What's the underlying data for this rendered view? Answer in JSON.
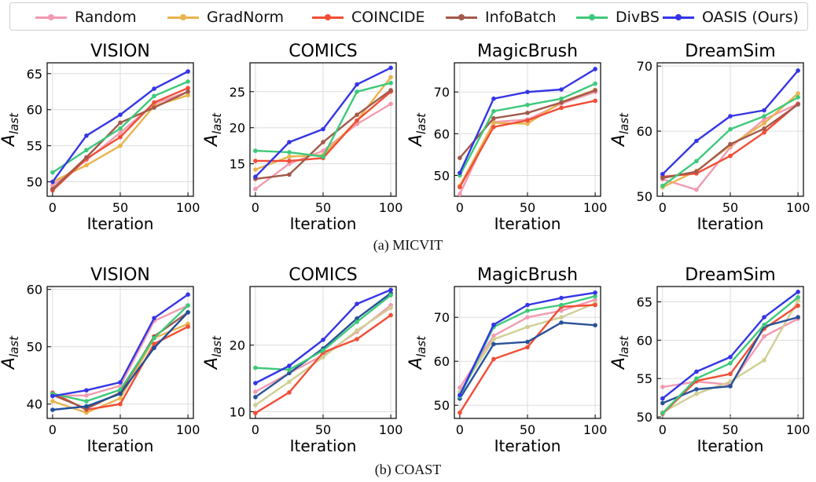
{
  "legend": [
    {
      "name": "Random",
      "color": "#f29bb0"
    },
    {
      "name": "GradNorm",
      "color": "#e8b44d"
    },
    {
      "name": "COINCIDE",
      "color": "#f04e36"
    },
    {
      "name": "InfoBatch",
      "color": "#a2594b"
    },
    {
      "name": "DivBS",
      "color": "#3ec97a"
    },
    {
      "name": "OASIS (Ours)",
      "color": "#3535e6"
    }
  ],
  "captions": [
    "(a) MICVIT",
    "(b) COAST"
  ],
  "chart_data": [
    {
      "type": "line",
      "group": "(a) MICVIT",
      "title": "VISION",
      "xlabel": "Iteration",
      "ylabel": "A_last",
      "x": [
        0,
        25,
        50,
        75,
        100
      ],
      "xlim": [
        -4,
        104
      ],
      "ylim": [
        48,
        66.5
      ],
      "yticks": [
        50,
        55,
        60,
        65
      ],
      "xticks": [
        0,
        50,
        100
      ],
      "grid": true,
      "series": [
        {
          "name": "Random",
          "values": [
            49.5,
            53.0,
            56.8,
            60.8,
            62.5
          ]
        },
        {
          "name": "GradNorm",
          "values": [
            50.0,
            52.3,
            55.0,
            60.5,
            62.0
          ]
        },
        {
          "name": "COINCIDE",
          "values": [
            48.8,
            53.2,
            56.2,
            61.0,
            63.0
          ]
        },
        {
          "name": "InfoBatch",
          "values": [
            49.0,
            53.4,
            58.2,
            60.3,
            62.5
          ]
        },
        {
          "name": "DivBS",
          "values": [
            51.3,
            54.4,
            57.4,
            61.9,
            63.9
          ]
        },
        {
          "name": "OASIS (Ours)",
          "values": [
            50.0,
            56.4,
            59.3,
            62.9,
            65.3
          ]
        }
      ]
    },
    {
      "type": "line",
      "group": "(a) MICVIT",
      "title": "COMICS",
      "xlabel": "Iteration",
      "ylabel": "A_last",
      "x": [
        0,
        25,
        50,
        75,
        100
      ],
      "xlim": [
        -4,
        104
      ],
      "ylim": [
        10.5,
        29
      ],
      "yticks": [
        15,
        20,
        25
      ],
      "xticks": [
        0,
        50,
        100
      ],
      "grid": true,
      "series": [
        {
          "name": "Random",
          "values": [
            11.5,
            15.0,
            16.8,
            20.5,
            23.3
          ]
        },
        {
          "name": "GradNorm",
          "values": [
            14.2,
            16.0,
            16.2,
            21.0,
            27.0
          ]
        },
        {
          "name": "COINCIDE",
          "values": [
            15.4,
            15.4,
            15.8,
            21.0,
            25.0
          ]
        },
        {
          "name": "InfoBatch",
          "values": [
            12.9,
            13.5,
            18.0,
            21.8,
            25.2
          ]
        },
        {
          "name": "DivBS",
          "values": [
            16.8,
            16.6,
            16.0,
            25.0,
            26.2
          ]
        },
        {
          "name": "OASIS (Ours)",
          "values": [
            13.2,
            18.0,
            19.8,
            26.0,
            28.3
          ]
        }
      ]
    },
    {
      "type": "line",
      "group": "(a) MICVIT",
      "title": "MagicBrush",
      "xlabel": "Iteration",
      "ylabel": "A_last",
      "x": [
        0,
        25,
        50,
        75,
        100
      ],
      "xlim": [
        -4,
        104
      ],
      "ylim": [
        45,
        77
      ],
      "yticks": [
        50,
        60,
        70
      ],
      "xticks": [
        0,
        50,
        100
      ],
      "grid": true,
      "series": [
        {
          "name": "Random",
          "values": [
            45.5,
            62.8,
            63.4,
            67.2,
            70.0
          ]
        },
        {
          "name": "GradNorm",
          "values": [
            47.5,
            62.6,
            62.4,
            67.6,
            70.5
          ]
        },
        {
          "name": "COINCIDE",
          "values": [
            47.2,
            61.6,
            63.2,
            66.2,
            67.9
          ]
        },
        {
          "name": "InfoBatch",
          "values": [
            54.2,
            63.7,
            65.0,
            67.5,
            70.4
          ]
        },
        {
          "name": "DivBS",
          "values": [
            50.0,
            65.4,
            66.9,
            68.4,
            72.0
          ]
        },
        {
          "name": "OASIS (Ours)",
          "values": [
            50.6,
            68.4,
            70.0,
            70.6,
            75.5
          ]
        }
      ]
    },
    {
      "type": "line",
      "group": "(a) MICVIT",
      "title": "DreamSim",
      "xlabel": "Iteration",
      "ylabel": "A_last",
      "x": [
        0,
        25,
        50,
        75,
        100
      ],
      "xlim": [
        -4,
        104
      ],
      "ylim": [
        50,
        70.5
      ],
      "yticks": [
        50,
        60,
        70
      ],
      "xticks": [
        0,
        50,
        100
      ],
      "grid": true,
      "series": [
        {
          "name": "Random",
          "values": [
            52.6,
            51.0,
            57.5,
            61.8,
            64.2
          ]
        },
        {
          "name": "GradNorm",
          "values": [
            51.4,
            53.9,
            57.8,
            61.2,
            65.8
          ]
        },
        {
          "name": "COINCIDE",
          "values": [
            53.0,
            53.5,
            56.2,
            59.8,
            64.2
          ]
        },
        {
          "name": "InfoBatch",
          "values": [
            52.8,
            53.8,
            58.0,
            60.4,
            64.1
          ]
        },
        {
          "name": "DivBS",
          "values": [
            51.6,
            55.4,
            60.3,
            62.3,
            65.2
          ]
        },
        {
          "name": "OASIS (Ours)",
          "values": [
            53.4,
            58.5,
            62.3,
            63.2,
            69.3
          ]
        }
      ]
    },
    {
      "type": "line",
      "group": "(b) COAST",
      "title": "VISION",
      "xlabel": "Iteration",
      "ylabel": "A_last",
      "x": [
        0,
        25,
        50,
        75,
        100
      ],
      "xlim": [
        -4,
        104
      ],
      "ylim": [
        37.5,
        60.5
      ],
      "yticks": [
        40,
        50,
        60
      ],
      "xticks": [
        0,
        50,
        100
      ],
      "grid": true,
      "series": [
        {
          "name": "Random",
          "values": [
            41.5,
            41.5,
            43.2,
            54.5,
            57.2
          ]
        },
        {
          "name": "GradNorm",
          "values": [
            40.5,
            38.5,
            41.0,
            51.5,
            54.0
          ]
        },
        {
          "name": "COINCIDE",
          "values": [
            42.0,
            39.0,
            40.0,
            50.5,
            53.5
          ]
        },
        {
          "name": "InfoBatch",
          "values": [
            41.6,
            39.2,
            42.0,
            51.8,
            56.0
          ]
        },
        {
          "name": "DivBS",
          "values": [
            41.8,
            40.5,
            42.5,
            51.5,
            57.2
          ]
        },
        {
          "name": "OASIS (Ours)",
          "values": [
            41.4,
            42.4,
            43.8,
            55.0,
            59.1
          ]
        },
        {
          "name": "",
          "color": "#1f4e9a",
          "values": [
            39.0,
            39.6,
            41.8,
            49.8,
            56.0
          ]
        }
      ]
    },
    {
      "type": "line",
      "group": "(b) COAST",
      "title": "COMICS",
      "xlabel": "Iteration",
      "ylabel": "A_last",
      "x": [
        0,
        25,
        50,
        75,
        100
      ],
      "xlim": [
        -4,
        104
      ],
      "ylim": [
        9,
        28.8
      ],
      "yticks": [
        10,
        20
      ],
      "xticks": [
        0,
        50,
        100
      ],
      "grid": true,
      "series": [
        {
          "name": "Random",
          "values": [
            13.0,
            15.8,
            18.5,
            22.0,
            26.0
          ]
        },
        {
          "name": "",
          "color": "#cfcf93",
          "values": [
            11.0,
            14.5,
            18.2,
            22.2,
            25.6
          ]
        },
        {
          "name": "COINCIDE",
          "values": [
            9.8,
            12.9,
            18.9,
            20.9,
            24.5
          ]
        },
        {
          "name": "",
          "color": "#2a5298",
          "values": [
            12.2,
            15.8,
            19.5,
            24.0,
            27.8
          ]
        },
        {
          "name": "DivBS",
          "values": [
            16.6,
            16.3,
            19.2,
            23.5,
            27.5
          ]
        },
        {
          "name": "OASIS (Ours)",
          "values": [
            14.3,
            16.9,
            20.8,
            26.2,
            28.3
          ]
        }
      ]
    },
    {
      "type": "line",
      "group": "(b) COAST",
      "title": "MagicBrush",
      "xlabel": "Iteration",
      "ylabel": "A_last",
      "x": [
        0,
        25,
        50,
        75,
        100
      ],
      "xlim": [
        -4,
        104
      ],
      "ylim": [
        47,
        77
      ],
      "yticks": [
        50,
        60,
        70
      ],
      "xticks": [
        0,
        50,
        100
      ],
      "grid": true,
      "series": [
        {
          "name": "Random",
          "values": [
            54.0,
            65.8,
            70.0,
            71.5,
            74.0
          ]
        },
        {
          "name": "",
          "color": "#cfcf93",
          "values": [
            53.0,
            65.0,
            67.8,
            70.0,
            73.2
          ]
        },
        {
          "name": "COINCIDE",
          "values": [
            48.3,
            60.5,
            63.2,
            72.4,
            72.8
          ]
        },
        {
          "name": "",
          "color": "#2a5298",
          "values": [
            51.5,
            63.9,
            64.4,
            68.8,
            68.2
          ]
        },
        {
          "name": "DivBS",
          "values": [
            52.0,
            67.8,
            71.5,
            72.8,
            74.8
          ]
        },
        {
          "name": "OASIS (Ours)",
          "values": [
            52.3,
            68.3,
            72.8,
            74.4,
            75.6
          ]
        }
      ]
    },
    {
      "type": "line",
      "group": "(b) COAST",
      "title": "DreamSim",
      "xlabel": "Iteration",
      "ylabel": "A_last",
      "x": [
        0,
        25,
        50,
        75,
        100
      ],
      "xlim": [
        -4,
        104
      ],
      "ylim": [
        49.8,
        67
      ],
      "yticks": [
        50,
        55,
        60,
        65
      ],
      "xticks": [
        0,
        50,
        100
      ],
      "grid": true,
      "series": [
        {
          "name": "Random",
          "values": [
            53.9,
            54.6,
            54.2,
            60.5,
            62.8
          ]
        },
        {
          "name": "",
          "color": "#cfcf93",
          "values": [
            50.6,
            53.0,
            54.6,
            57.4,
            65.2
          ]
        },
        {
          "name": "COINCIDE",
          "values": [
            50.4,
            54.7,
            55.6,
            61.5,
            64.5
          ]
        },
        {
          "name": "",
          "color": "#2a5298",
          "values": [
            51.8,
            53.6,
            54.0,
            61.8,
            63.0
          ]
        },
        {
          "name": "DivBS",
          "values": [
            50.5,
            55.0,
            57.0,
            62.0,
            65.6
          ]
        },
        {
          "name": "OASIS (Ours)",
          "values": [
            52.4,
            55.9,
            57.8,
            63.0,
            66.3
          ]
        }
      ]
    }
  ]
}
